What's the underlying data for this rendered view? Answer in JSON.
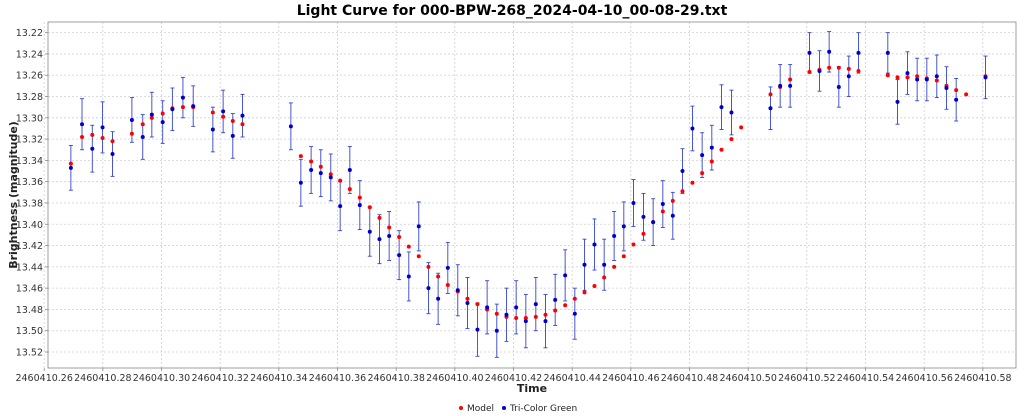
{
  "chart_data": {
    "type": "scatter",
    "title": "Light Curve for 000-BPW-268_2024-04-10_00-08-29.txt",
    "xlabel": "Time",
    "ylabel": "Brightness (magnitude)",
    "xlim": [
      2460410.2613,
      2460410.5913
    ],
    "ylim": [
      13.21,
      13.535
    ],
    "y_inverted": true,
    "grid": true,
    "legend_position": "bottom-center",
    "x_ticks": [
      2460410.26,
      2460410.28,
      2460410.3,
      2460410.32,
      2460410.34,
      2460410.36,
      2460410.38,
      2460410.4,
      2460410.42,
      2460410.44,
      2460410.46,
      2460410.48,
      2460410.5,
      2460410.52,
      2460410.54,
      2460410.56,
      2460410.58
    ],
    "x_tick_labels": [
      "2460410.26",
      "2460410.28",
      "2460410.30",
      "2460410.32",
      "2460410.34",
      "2460410.36",
      "2460410.38",
      "2460410.40",
      "2460410.42",
      "2460410.44",
      "2460410.46",
      "2460410.48",
      "2460410.50",
      "2460410.52",
      "2460410.54",
      "2460410.56",
      "2460410.58"
    ],
    "y_ticks": [
      13.22,
      13.24,
      13.26,
      13.28,
      13.3,
      13.32,
      13.34,
      13.36,
      13.38,
      13.4,
      13.42,
      13.44,
      13.46,
      13.48,
      13.5,
      13.52
    ],
    "y_tick_labels": [
      "13.22",
      "13.24",
      "13.26",
      "13.28",
      "13.30",
      "13.32",
      "13.34",
      "13.36",
      "13.38",
      "13.40",
      "13.42",
      "13.44",
      "13.46",
      "13.48",
      "13.50",
      "13.52"
    ],
    "series": [
      {
        "name": "Model",
        "color": "#ff0000",
        "points": [
          [
            2460410.2691,
            13.343
          ],
          [
            2460410.2729,
            13.318
          ],
          [
            2460410.2764,
            13.316
          ],
          [
            2460410.2799,
            13.319
          ],
          [
            2460410.2833,
            13.322
          ],
          [
            2460410.2899,
            13.315
          ],
          [
            2460410.2936,
            13.306
          ],
          [
            2460410.2967,
            13.3
          ],
          [
            2460410.3004,
            13.296
          ],
          [
            2460410.3037,
            13.291
          ],
          [
            2460410.3073,
            13.29
          ],
          [
            2460410.3108,
            13.29
          ],
          [
            2460410.3175,
            13.295
          ],
          [
            2460410.321,
            13.299
          ],
          [
            2460410.3243,
            13.303
          ],
          [
            2460410.3276,
            13.306
          ],
          [
            2460410.3475,
            13.336
          ],
          [
            2460410.351,
            13.341
          ],
          [
            2460410.3543,
            13.346
          ],
          [
            2460410.3577,
            13.353
          ],
          [
            2460410.3609,
            13.359
          ],
          [
            2460410.3642,
            13.367
          ],
          [
            2460410.3676,
            13.375
          ],
          [
            2460410.371,
            13.384
          ],
          [
            2460410.3743,
            13.394
          ],
          [
            2460410.3776,
            13.403
          ],
          [
            2460410.381,
            13.412
          ],
          [
            2460410.3843,
            13.421
          ],
          [
            2460410.3877,
            13.43
          ],
          [
            2460410.391,
            13.44
          ],
          [
            2460410.3943,
            13.449
          ],
          [
            2460410.3976,
            13.457
          ],
          [
            2460410.401,
            13.463
          ],
          [
            2460410.4043,
            13.47
          ],
          [
            2460410.4077,
            13.475
          ],
          [
            2460410.411,
            13.48
          ],
          [
            2460410.4143,
            13.484
          ],
          [
            2460410.4176,
            13.487
          ],
          [
            2460410.4209,
            13.488
          ],
          [
            2460410.4242,
            13.488
          ],
          [
            2460410.4276,
            13.487
          ],
          [
            2460410.4309,
            13.485
          ],
          [
            2460410.4342,
            13.481
          ],
          [
            2460410.4376,
            13.476
          ],
          [
            2460410.4409,
            13.47
          ],
          [
            2460410.4442,
            13.464
          ],
          [
            2460410.4476,
            13.458
          ],
          [
            2460410.4509,
            13.45
          ],
          [
            2460410.4543,
            13.44
          ],
          [
            2460410.4576,
            13.43
          ],
          [
            2460410.4609,
            13.419
          ],
          [
            2460410.4643,
            13.409
          ],
          [
            2460410.4676,
            13.398
          ],
          [
            2460410.4709,
            13.388
          ],
          [
            2460410.4743,
            13.378
          ],
          [
            2460410.4776,
            13.369
          ],
          [
            2460410.481,
            13.361
          ],
          [
            2460410.4843,
            13.352
          ],
          [
            2460410.4876,
            13.341
          ],
          [
            2460410.4909,
            13.33
          ],
          [
            2460410.4943,
            13.32
          ],
          [
            2460410.4976,
            13.309
          ],
          [
            2460410.5076,
            13.278
          ],
          [
            2460410.5109,
            13.271
          ],
          [
            2460410.5143,
            13.264
          ],
          [
            2460410.5209,
            13.257
          ],
          [
            2460410.5243,
            13.255
          ],
          [
            2460410.5276,
            13.253
          ],
          [
            2460410.5309,
            13.253
          ],
          [
            2460410.5343,
            13.254
          ],
          [
            2460410.5376,
            13.256
          ],
          [
            2460410.5476,
            13.26
          ],
          [
            2460410.5509,
            13.262
          ],
          [
            2460410.5543,
            13.262
          ],
          [
            2460410.5576,
            13.261
          ],
          [
            2460410.5609,
            13.263
          ],
          [
            2460410.5643,
            13.265
          ],
          [
            2460410.5676,
            13.27
          ],
          [
            2460410.5709,
            13.274
          ],
          [
            2460410.5743,
            13.278
          ],
          [
            2460410.5809,
            13.261
          ]
        ]
      },
      {
        "name": "Tri-Color Green",
        "color": "#0000cc",
        "points": [
          [
            2460410.2691,
            13.347,
            0.021
          ],
          [
            2460410.2729,
            13.306,
            0.024
          ],
          [
            2460410.2764,
            13.329,
            0.022
          ],
          [
            2460410.2799,
            13.309,
            0.024
          ],
          [
            2460410.2833,
            13.334,
            0.021
          ],
          [
            2460410.2899,
            13.302,
            0.021
          ],
          [
            2460410.2936,
            13.318,
            0.021
          ],
          [
            2460410.2967,
            13.297,
            0.021
          ],
          [
            2460410.3004,
            13.304,
            0.02
          ],
          [
            2460410.3037,
            13.292,
            0.02
          ],
          [
            2460410.3073,
            13.281,
            0.019
          ],
          [
            2460410.3108,
            13.289,
            0.019
          ],
          [
            2460410.3175,
            13.311,
            0.021
          ],
          [
            2460410.321,
            13.294,
            0.02
          ],
          [
            2460410.3243,
            13.317,
            0.021
          ],
          [
            2460410.3276,
            13.298,
            0.02
          ],
          [
            2460410.3441,
            13.308,
            0.022
          ],
          [
            2460410.3475,
            13.361,
            0.022
          ],
          [
            2460410.351,
            13.349,
            0.022
          ],
          [
            2460410.3543,
            13.352,
            0.022
          ],
          [
            2460410.3577,
            13.356,
            0.022
          ],
          [
            2460410.3609,
            13.383,
            0.023
          ],
          [
            2460410.3642,
            13.349,
            0.022
          ],
          [
            2460410.3676,
            13.382,
            0.023
          ],
          [
            2460410.371,
            13.407,
            0.023
          ],
          [
            2460410.3743,
            13.414,
            0.023
          ],
          [
            2460410.3776,
            13.411,
            0.023
          ],
          [
            2460410.381,
            13.429,
            0.023
          ],
          [
            2460410.3843,
            13.449,
            0.023
          ],
          [
            2460410.3877,
            13.402,
            0.023
          ],
          [
            2460410.391,
            13.46,
            0.024
          ],
          [
            2460410.3943,
            13.47,
            0.024
          ],
          [
            2460410.3976,
            13.441,
            0.024
          ],
          [
            2460410.401,
            13.462,
            0.024
          ],
          [
            2460410.4043,
            13.474,
            0.024
          ],
          [
            2460410.4077,
            13.499,
            0.025
          ],
          [
            2460410.411,
            13.478,
            0.025
          ],
          [
            2460410.4143,
            13.5,
            0.025
          ],
          [
            2460410.4176,
            13.485,
            0.025
          ],
          [
            2460410.4209,
            13.478,
            0.025
          ],
          [
            2460410.4242,
            13.491,
            0.025
          ],
          [
            2460410.4276,
            13.475,
            0.025
          ],
          [
            2460410.4309,
            13.491,
            0.025
          ],
          [
            2460410.4342,
            13.471,
            0.024
          ],
          [
            2460410.4376,
            13.448,
            0.024
          ],
          [
            2460410.4409,
            13.484,
            0.024
          ],
          [
            2460410.4442,
            13.438,
            0.024
          ],
          [
            2460410.4476,
            13.419,
            0.024
          ],
          [
            2460410.4509,
            13.438,
            0.024
          ],
          [
            2460410.4543,
            13.411,
            0.023
          ],
          [
            2460410.4576,
            13.402,
            0.023
          ],
          [
            2460410.4609,
            13.38,
            0.022
          ],
          [
            2460410.4643,
            13.393,
            0.022
          ],
          [
            2460410.4676,
            13.398,
            0.022
          ],
          [
            2460410.4709,
            13.381,
            0.022
          ],
          [
            2460410.4743,
            13.392,
            0.022
          ],
          [
            2460410.4776,
            13.35,
            0.021
          ],
          [
            2460410.481,
            13.31,
            0.021
          ],
          [
            2460410.4843,
            13.335,
            0.021
          ],
          [
            2460410.4876,
            13.328,
            0.021
          ],
          [
            2460410.4909,
            13.29,
            0.021
          ],
          [
            2460410.4943,
            13.295,
            0.021
          ],
          [
            2460410.5076,
            13.291,
            0.02
          ],
          [
            2460410.5109,
            13.27,
            0.02
          ],
          [
            2460410.5143,
            13.27,
            0.02
          ],
          [
            2460410.5209,
            13.239,
            0.019
          ],
          [
            2460410.5243,
            13.256,
            0.019
          ],
          [
            2460410.5276,
            13.238,
            0.019
          ],
          [
            2460410.5309,
            13.271,
            0.019
          ],
          [
            2460410.5343,
            13.261,
            0.019
          ],
          [
            2460410.5376,
            13.239,
            0.019
          ],
          [
            2460410.5476,
            13.239,
            0.019
          ],
          [
            2460410.5509,
            13.285,
            0.021
          ],
          [
            2460410.5543,
            13.258,
            0.02
          ],
          [
            2460410.5576,
            13.264,
            0.02
          ],
          [
            2460410.5609,
            13.264,
            0.02
          ],
          [
            2460410.5643,
            13.261,
            0.02
          ],
          [
            2460410.5676,
            13.272,
            0.02
          ],
          [
            2460410.5709,
            13.283,
            0.02
          ],
          [
            2460410.5809,
            13.262,
            0.02
          ]
        ]
      }
    ]
  }
}
